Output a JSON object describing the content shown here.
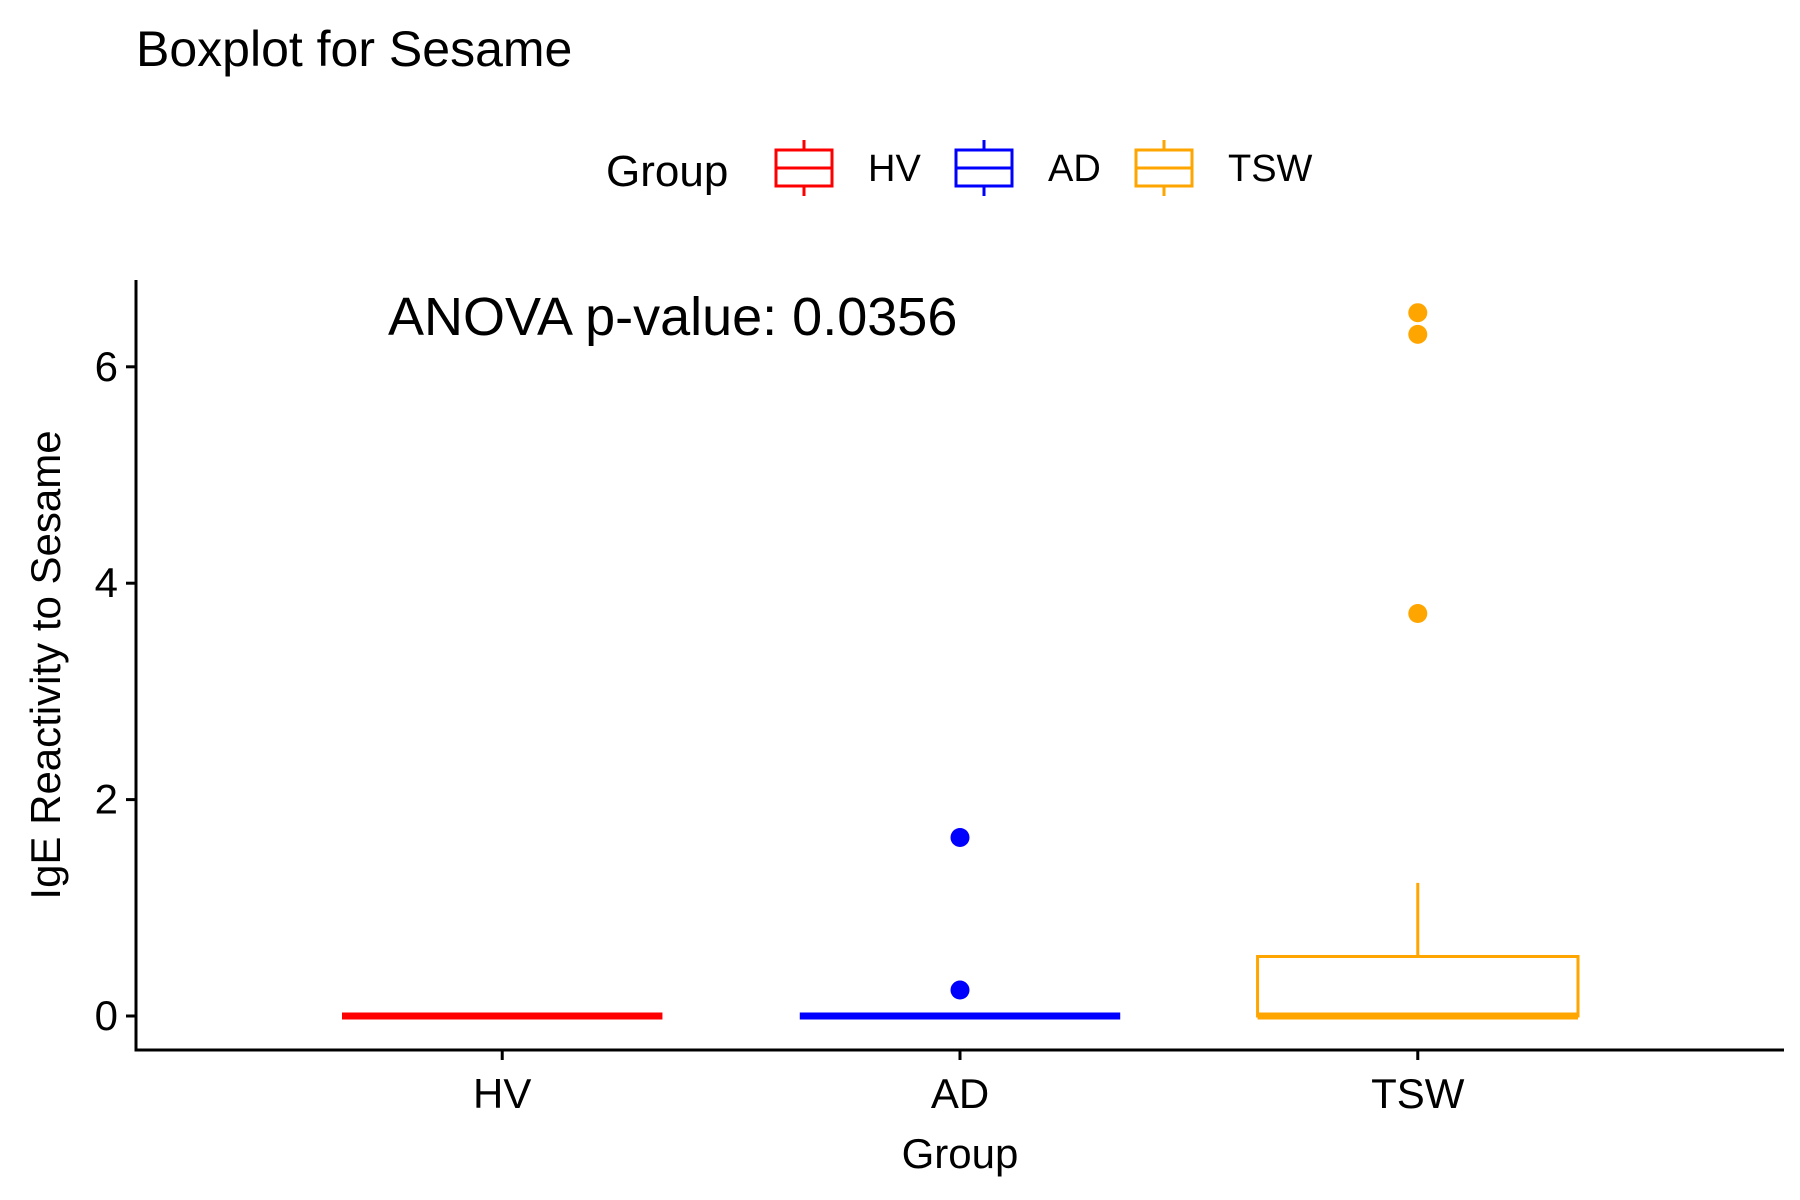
{
  "chart_data": {
    "type": "boxplot",
    "title": "Boxplot for Sesame",
    "xlabel": "Group",
    "ylabel": "IgE Reactivity to Sesame",
    "ylim": [
      -0.32,
      6.8
    ],
    "yticks": [
      0,
      2,
      4,
      6
    ],
    "grid": false,
    "legend": {
      "title": "Group",
      "position": "top",
      "entries": [
        "HV",
        "AD",
        "TSW"
      ]
    },
    "annotation": "ANOVA p-value: 0.0356",
    "categories": [
      "HV",
      "AD",
      "TSW"
    ],
    "series": [
      {
        "name": "HV",
        "color": "#ff0000",
        "min": 0,
        "q1": 0,
        "median": 0,
        "q3": 0,
        "max": 0,
        "outliers": []
      },
      {
        "name": "AD",
        "color": "#0000ff",
        "min": 0,
        "q1": 0,
        "median": 0,
        "q3": 0,
        "max": 0,
        "outliers": [
          1.65,
          0.24
        ]
      },
      {
        "name": "TSW",
        "color": "#ffa500",
        "min": 0,
        "q1": 0,
        "median": 0,
        "q3": 0.55,
        "max": 1.23,
        "outliers": [
          6.5,
          6.3,
          3.72
        ]
      }
    ]
  }
}
